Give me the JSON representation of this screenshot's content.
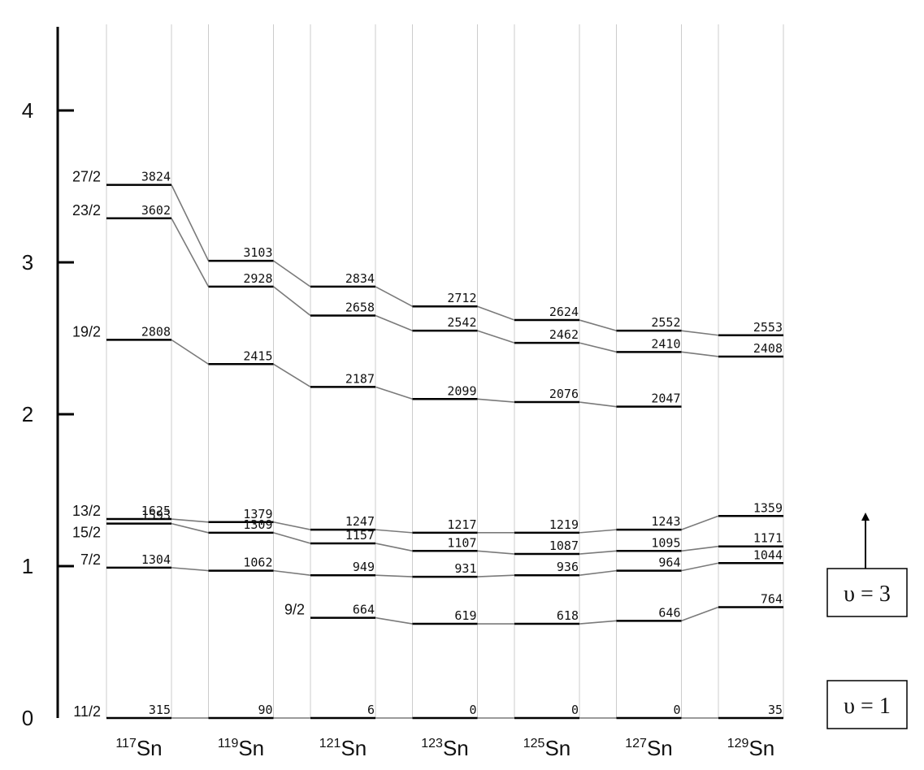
{
  "y_axis": {
    "ticks": [
      "0",
      "1",
      "2",
      "3",
      "4"
    ],
    "range": [
      0,
      4.5
    ]
  },
  "isotopes": [
    {
      "mass": "117",
      "symbol": "Sn"
    },
    {
      "mass": "119",
      "symbol": "Sn"
    },
    {
      "mass": "121",
      "symbol": "Sn"
    },
    {
      "mass": "123",
      "symbol": "Sn"
    },
    {
      "mass": "125",
      "symbol": "Sn"
    },
    {
      "mass": "127",
      "symbol": "Sn"
    },
    {
      "mass": "129",
      "symbol": "Sn"
    }
  ],
  "bands": [
    {
      "spin": "11/2",
      "rows": [
        {
          "y": 0,
          "label": "315"
        },
        {
          "y": 0,
          "label": "90"
        },
        {
          "y": 0,
          "label": "6"
        },
        {
          "y": 0,
          "label": "0"
        },
        {
          "y": 0,
          "label": "0"
        },
        {
          "y": 0,
          "label": "0"
        },
        {
          "y": 0,
          "label": "35"
        }
      ]
    },
    {
      "spin": "7/2",
      "rows": [
        {
          "y": 0.99,
          "label": "1304"
        },
        {
          "y": 0.97,
          "label": "1062"
        },
        {
          "y": 0.94,
          "label": "949"
        },
        {
          "y": 0.93,
          "label": "931"
        },
        {
          "y": 0.94,
          "label": "936"
        },
        {
          "y": 0.97,
          "label": "964"
        },
        {
          "y": 1.02,
          "label": "1044"
        }
      ]
    },
    {
      "spin": "15/2",
      "rows": [
        {
          "y": 1.28,
          "label": "1593"
        },
        {
          "y": 1.22,
          "label": "1309"
        },
        {
          "y": 1.15,
          "label": "1157"
        },
        {
          "y": 1.1,
          "label": "1107"
        },
        {
          "y": 1.08,
          "label": "1087"
        },
        {
          "y": 1.1,
          "label": "1095"
        },
        {
          "y": 1.13,
          "label": "1171"
        }
      ]
    },
    {
      "spin": "13/2",
      "rows": [
        {
          "y": 1.31,
          "label": "1625"
        },
        {
          "y": 1.29,
          "label": "1379"
        },
        {
          "y": 1.24,
          "label": "1247"
        },
        {
          "y": 1.22,
          "label": "1217"
        },
        {
          "y": 1.22,
          "label": "1219"
        },
        {
          "y": 1.24,
          "label": "1243"
        },
        {
          "y": 1.33,
          "label": "1359"
        }
      ]
    },
    {
      "spin": "9/2",
      "rows": [
        null,
        null,
        {
          "y": 0.66,
          "label": "664"
        },
        {
          "y": 0.62,
          "label": "619"
        },
        {
          "y": 0.62,
          "label": "618"
        },
        {
          "y": 0.64,
          "label": "646"
        },
        {
          "y": 0.73,
          "label": "764"
        }
      ]
    },
    {
      "spin": "19/2",
      "rows": [
        {
          "y": 2.49,
          "label": "2808"
        },
        {
          "y": 2.33,
          "label": "2415"
        },
        {
          "y": 2.18,
          "label": "2187"
        },
        {
          "y": 2.1,
          "label": "2099"
        },
        {
          "y": 2.08,
          "label": "2076"
        },
        {
          "y": 2.05,
          "label": "2047"
        },
        null
      ]
    },
    {
      "spin": "23/2",
      "rows": [
        {
          "y": 3.29,
          "label": "3602"
        },
        {
          "y": 2.84,
          "label": "2928"
        },
        {
          "y": 2.65,
          "label": "2658"
        },
        {
          "y": 2.55,
          "label": "2542"
        },
        {
          "y": 2.47,
          "label": "2462"
        },
        {
          "y": 2.41,
          "label": "2410"
        },
        {
          "y": 2.38,
          "label": "2408"
        }
      ]
    },
    {
      "spin": "27/2",
      "rows": [
        {
          "y": 3.51,
          "label": "3824"
        },
        {
          "y": 3.01,
          "label": "3103"
        },
        {
          "y": 2.84,
          "label": "2834"
        },
        {
          "y": 2.71,
          "label": "2712"
        },
        {
          "y": 2.62,
          "label": "2624"
        },
        {
          "y": 2.55,
          "label": "2552"
        },
        {
          "y": 2.52,
          "label": "2553"
        }
      ]
    }
  ],
  "legend": {
    "v3": "υ = 3",
    "v1": "υ = 1"
  },
  "colors": {
    "level": "#000000",
    "connector": "#7a7a7a",
    "gridline": "#cccccc"
  }
}
